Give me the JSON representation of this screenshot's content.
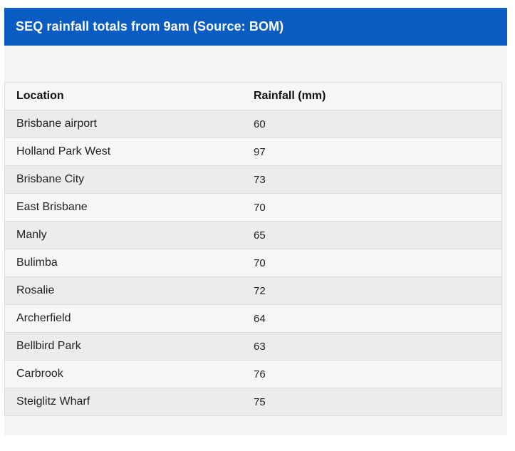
{
  "header": {
    "title": "SEQ rainfall totals from 9am (Source: BOM)"
  },
  "colors": {
    "header_bg": "#0a5cc2",
    "panel_bg": "#f4f4f4",
    "row_odd": "#ececec",
    "row_even": "#f6f6f6"
  },
  "chart_data": {
    "type": "table",
    "title": "SEQ rainfall totals from 9am (Source: BOM)",
    "columns": [
      "Location",
      "Rainfall (mm)"
    ],
    "rows": [
      {
        "location": "Brisbane airport",
        "rainfall": "60"
      },
      {
        "location": "Holland Park West",
        "rainfall": "97"
      },
      {
        "location": "Brisbane City",
        "rainfall": "73"
      },
      {
        "location": "East Brisbane",
        "rainfall": "70"
      },
      {
        "location": "Manly",
        "rainfall": "65"
      },
      {
        "location": "Bulimba",
        "rainfall": "70"
      },
      {
        "location": "Rosalie",
        "rainfall": "72"
      },
      {
        "location": "Archerfield",
        "rainfall": "64"
      },
      {
        "location": "Bellbird Park",
        "rainfall": "63"
      },
      {
        "location": "Carbrook",
        "rainfall": "76"
      },
      {
        "location": "Steiglitz Wharf",
        "rainfall": "75"
      }
    ]
  }
}
